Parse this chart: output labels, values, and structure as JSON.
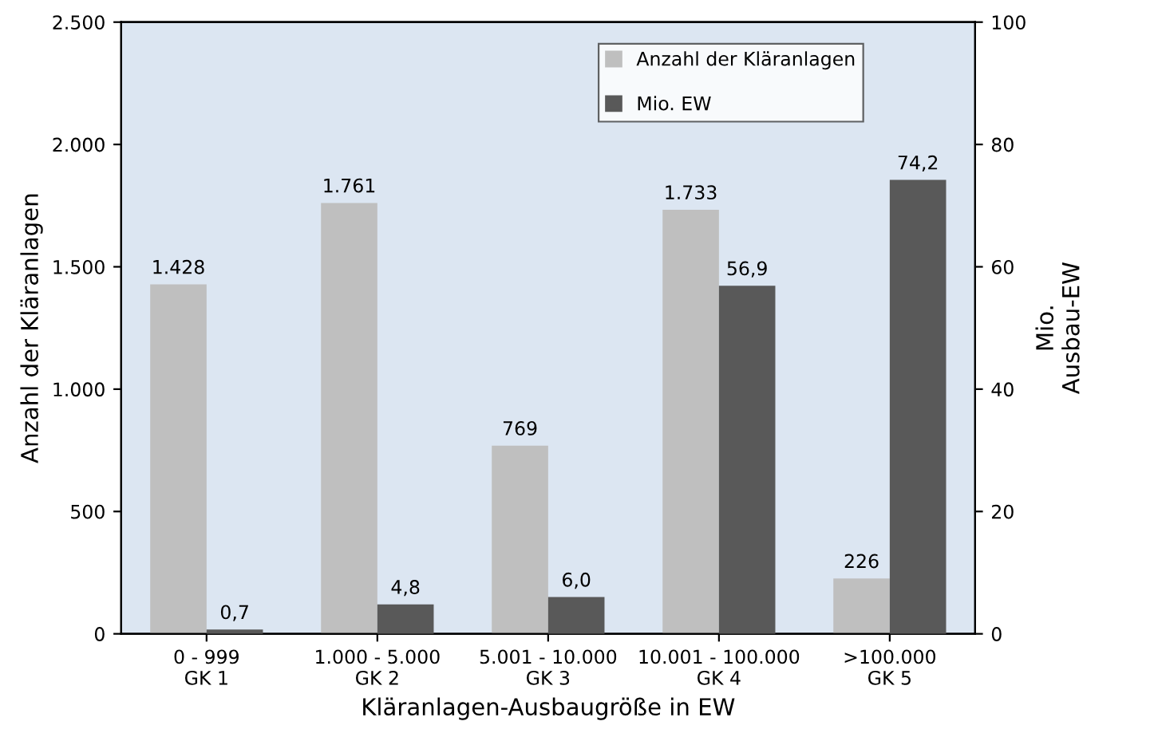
{
  "chart_data": {
    "type": "bar",
    "xlabel": "Kläranlagen-Ausbaugröße in EW",
    "ylabel": "Anzahl der Kläranlagen",
    "y2label": "Mio.\nAusbau-EW",
    "categories": [
      "0 - 999\nGK 1",
      "1.000 - 5.000\nGK 2",
      "5.001 - 10.000\nGK 3",
      "10.001 - 100.000\nGK 4",
      ">100.000\nGK 5"
    ],
    "series": [
      {
        "name": "Anzahl der Kläranlagen",
        "color": "#bfbfbf",
        "values": [
          1428,
          1761,
          769,
          1733,
          226
        ],
        "value_labels": [
          "1.428",
          "1.761",
          "769",
          "1.733",
          "226"
        ]
      },
      {
        "name": "Mio. EW",
        "color": "#595959",
        "axis": "y2",
        "values": [
          0.7,
          4.8,
          6.0,
          56.9,
          74.2
        ],
        "value_labels": [
          "0,7",
          "4,8",
          "6,0",
          "56,9",
          "74,2"
        ]
      }
    ],
    "ylim": [
      0,
      2500
    ],
    "yticks": [
      0,
      {
        "value": 500,
        "label": "500"
      },
      {
        "value": 1000,
        "label": "1.000"
      },
      {
        "value": 1500,
        "label": "1.500"
      },
      {
        "value": 2000,
        "label": "2.000"
      },
      {
        "value": 2500,
        "label": "2.500"
      }
    ],
    "y2lim": [
      0,
      100
    ],
    "y2ticks": [
      0,
      20,
      40,
      60,
      80,
      100
    ],
    "grid": false,
    "legend": "top right"
  }
}
